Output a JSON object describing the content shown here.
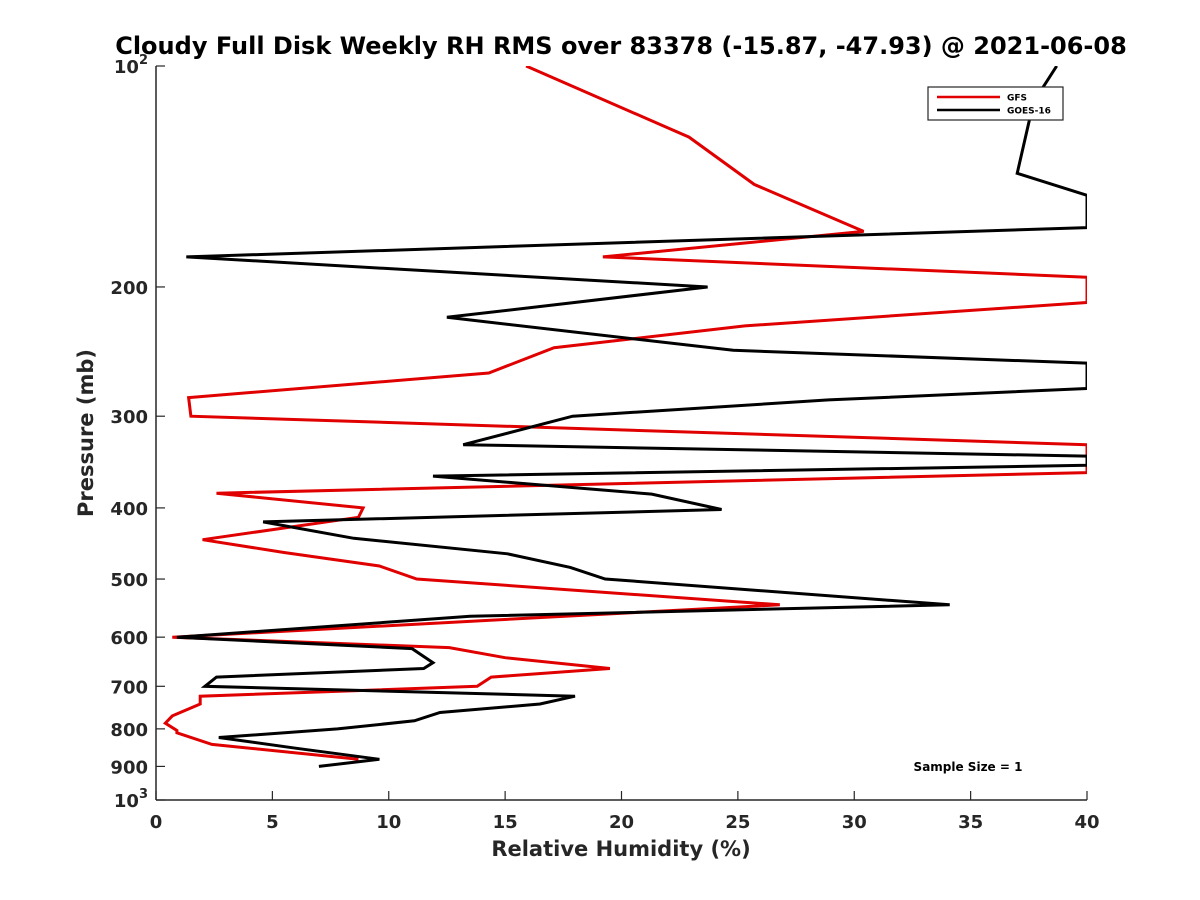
{
  "chart_data": {
    "type": "line",
    "title": "Cloudy Full Disk Weekly RH RMS over 83378 (-15.87, -47.93) @ 2021-06-08",
    "xlabel": "Relative Humidity (%)",
    "ylabel": "Pressure (mb)",
    "xlim": [
      0,
      40
    ],
    "ylim": [
      100,
      1000
    ],
    "y_scale": "log",
    "y_reversed": true,
    "grid": false,
    "legend_position": "top-right",
    "x_ticks": [
      0,
      5,
      10,
      15,
      20,
      25,
      30,
      35,
      40
    ],
    "y_ticks": [
      {
        "value": 100,
        "base": "10",
        "exp": "2"
      },
      {
        "value": 200,
        "label": "200"
      },
      {
        "value": 300,
        "label": "300"
      },
      {
        "value": 400,
        "label": "400"
      },
      {
        "value": 500,
        "label": "500"
      },
      {
        "value": 600,
        "label": "600"
      },
      {
        "value": 700,
        "label": "700"
      },
      {
        "value": 800,
        "label": "800"
      },
      {
        "value": 900,
        "label": "900"
      },
      {
        "value": 1000,
        "base": "10",
        "exp": "3"
      }
    ],
    "annotation": "Sample Size = 1",
    "series": [
      {
        "name": "GFS",
        "color": "#e00000",
        "points": [
          [
            15.9,
            100
          ],
          [
            22.9,
            125
          ],
          [
            25.7,
            145
          ],
          [
            30.4,
            168
          ],
          [
            19.2,
            182
          ],
          [
            40.0,
            194
          ],
          [
            40.0,
            210
          ],
          [
            25.3,
            226
          ],
          [
            17.1,
            242
          ],
          [
            14.3,
            262
          ],
          [
            1.4,
            283
          ],
          [
            1.5,
            300
          ],
          [
            40.0,
            328
          ],
          [
            40.0,
            348
          ],
          [
            40.0,
            358
          ],
          [
            2.6,
            382
          ],
          [
            8.9,
            400
          ],
          [
            8.7,
            412
          ],
          [
            2.0,
            442
          ],
          [
            5.5,
            460
          ],
          [
            9.6,
            480
          ],
          [
            11.2,
            500
          ],
          [
            26.8,
            542
          ],
          [
            0.7,
            600
          ],
          [
            12.6,
            620
          ],
          [
            15.0,
            640
          ],
          [
            19.5,
            662
          ],
          [
            14.4,
            680
          ],
          [
            13.8,
            700
          ],
          [
            1.9,
            722
          ],
          [
            1.9,
            740
          ],
          [
            0.7,
            768
          ],
          [
            0.4,
            786
          ],
          [
            0.9,
            804
          ],
          [
            0.9,
            810
          ],
          [
            2.4,
            840
          ],
          [
            8.7,
            880
          ]
        ]
      },
      {
        "name": "GOES-16",
        "color": "#000000",
        "points": [
          [
            38.7,
            100
          ],
          [
            37.7,
            112
          ],
          [
            37.0,
            140
          ],
          [
            40.0,
            150
          ],
          [
            40.0,
            166
          ],
          [
            1.3,
            182
          ],
          [
            23.7,
            200
          ],
          [
            12.5,
            220
          ],
          [
            24.8,
            244
          ],
          [
            40.0,
            254
          ],
          [
            40.0,
            275
          ],
          [
            28.9,
            285
          ],
          [
            17.9,
            300
          ],
          [
            13.2,
            328
          ],
          [
            40.0,
            340
          ],
          [
            40.0,
            350
          ],
          [
            11.9,
            362
          ],
          [
            21.3,
            383
          ],
          [
            24.3,
            402
          ],
          [
            4.6,
            418
          ],
          [
            8.5,
            440
          ],
          [
            15.1,
            462
          ],
          [
            17.8,
            482
          ],
          [
            19.3,
            500
          ],
          [
            34.1,
            542
          ],
          [
            13.5,
            562
          ],
          [
            0.9,
            600
          ],
          [
            11.0,
            622
          ],
          [
            11.9,
            650
          ],
          [
            11.5,
            662
          ],
          [
            2.6,
            680
          ],
          [
            2.1,
            700
          ],
          [
            18.0,
            722
          ],
          [
            16.5,
            740
          ],
          [
            12.2,
            760
          ],
          [
            11.1,
            780
          ],
          [
            7.8,
            800
          ],
          [
            2.7,
            822
          ],
          [
            6.0,
            850
          ],
          [
            9.6,
            880
          ],
          [
            7.0,
            900
          ]
        ]
      }
    ]
  }
}
